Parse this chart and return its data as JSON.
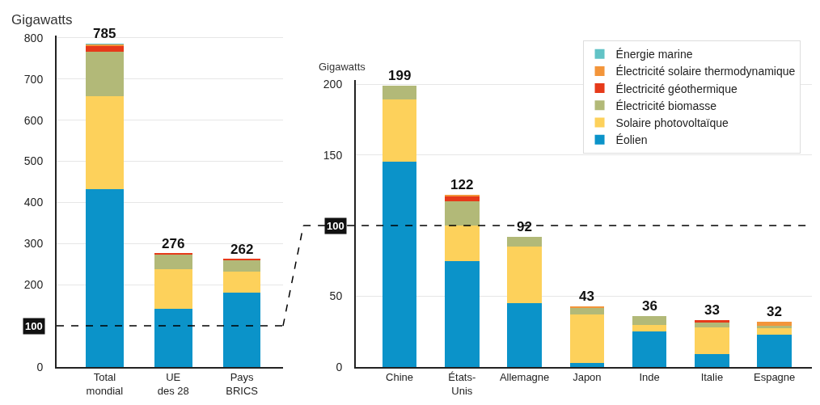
{
  "chart_data": [
    {
      "type": "bar",
      "stacked": true,
      "ylabel": "Gigawatts",
      "categories": [
        "Total\nmondial",
        "UE\ndes 28",
        "Pays\nBRICS"
      ],
      "series": [
        {
          "color": "#0b93c9",
          "values": [
            433,
            142,
            181
          ]
        },
        {
          "color": "#fdd15b",
          "values": [
            225,
            95,
            50
          ]
        },
        {
          "color": "#b2b978",
          "values": [
            109,
            36,
            29
          ]
        },
        {
          "color": "#e63a1a",
          "values": [
            13,
            3,
            2
          ]
        },
        {
          "color": "#f3953a",
          "values": [
            4,
            0,
            0
          ]
        },
        {
          "color": "#62c3c6",
          "values": [
            1,
            0,
            0
          ]
        }
      ],
      "totals": [
        "785",
        "276",
        "262"
      ],
      "ylim": [
        0,
        805
      ],
      "yticks": [
        0,
        200,
        300,
        400,
        500,
        600,
        700,
        800
      ],
      "grid": "y",
      "legend": false,
      "ref_lines": [
        {
          "axis": "y",
          "value": 100,
          "label": "100",
          "line_style": "dashed",
          "color": "#000000"
        }
      ]
    },
    {
      "type": "bar",
      "stacked": true,
      "ylabel": "Gigawatts",
      "categories": [
        "Chine",
        "États-\nUnis",
        "Allemagne",
        "Japon",
        "Inde",
        "Italie",
        "Espagne"
      ],
      "series": [
        {
          "name": "Éolien",
          "color": "#0b93c9",
          "values": [
            145,
            75,
            45,
            3,
            25,
            9,
            23
          ]
        },
        {
          "name": "Solaire photovoltaïque",
          "color": "#fdd15b",
          "values": [
            44,
            25,
            40,
            34,
            5,
            19,
            5
          ]
        },
        {
          "name": "Électricité biomasse",
          "color": "#b2b978",
          "values": [
            10,
            17,
            7,
            5,
            6,
            4,
            1
          ]
        },
        {
          "name": "Électricité géothermique",
          "color": "#e63a1a",
          "values": [
            0,
            4,
            0,
            0,
            0,
            1,
            0
          ]
        },
        {
          "name": "Électricité solaire thermodynamique",
          "color": "#f3953a",
          "values": [
            0,
            1,
            0,
            1,
            0,
            0,
            3
          ]
        },
        {
          "name": "Énergie marine",
          "color": "#62c3c6",
          "values": [
            0,
            0,
            0,
            0,
            0,
            0,
            0
          ]
        }
      ],
      "totals": [
        "199",
        "122",
        "92",
        "43",
        "36",
        "33",
        "32"
      ],
      "ylim": [
        0,
        203
      ],
      "yticks": [
        0,
        50,
        150,
        200
      ],
      "grid": "y",
      "legend": "top right",
      "ref_lines": [
        {
          "axis": "y",
          "value": 100,
          "label": "100",
          "line_style": "dashed",
          "color": "#000000"
        }
      ]
    }
  ]
}
